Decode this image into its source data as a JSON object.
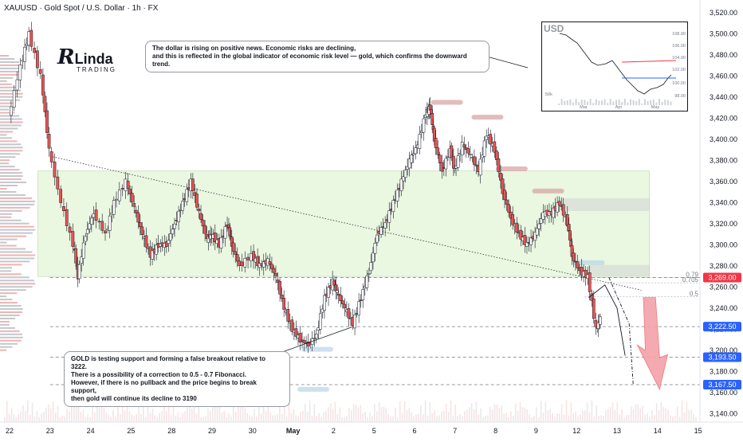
{
  "header": {
    "title": "XAUUSD · Gold Spot / U.S. Dollar · 1h · FX"
  },
  "logo": {
    "initial": "R",
    "name": "Linda",
    "subtitle": "TRADING"
  },
  "notes": [
    {
      "text_lines": [
        "The dollar is rising on positive news. Economic risks are declining,",
        "and this is reflected in the global indicator of economic risk level — gold, which confirms the downward trend."
      ]
    },
    {
      "text_lines": [
        "GOLD is testing support and forming a false breakout relative to 3222.",
        "There is a possibility of a correction to 0.5 - 0.7 Fibonacci.",
        "However, if there is no pullback and the price begins to break support,",
        "then gold will continue its decline to 3190"
      ]
    }
  ],
  "chart_data": {
    "type": "line",
    "title": "XAUUSD · Gold Spot / U.S. Dollar · 1h · FX",
    "x_tick_labels": [
      "22",
      "23",
      "24",
      "25",
      "28",
      "29",
      "30",
      "May",
      "2",
      "5",
      "6",
      "7",
      "8",
      "9",
      "12",
      "13",
      "14",
      "15"
    ],
    "y_ticks": [
      3140,
      3160,
      3180,
      3200,
      3220,
      3240,
      3260,
      3280,
      3300,
      3320,
      3340,
      3360,
      3380,
      3400,
      3420,
      3440,
      3460,
      3480,
      3500,
      3520
    ],
    "ylim": [
      3132,
      3532
    ],
    "grid": false,
    "price_path": [
      [
        0,
        3420
      ],
      [
        0.3,
        3470
      ],
      [
        0.5,
        3500
      ],
      [
        0.8,
        3460
      ],
      [
        1.0,
        3390
      ],
      [
        1.3,
        3340
      ],
      [
        1.6,
        3300
      ],
      [
        1.7,
        3270
      ],
      [
        1.9,
        3310
      ],
      [
        2.1,
        3330
      ],
      [
        2.4,
        3310
      ],
      [
        2.6,
        3340
      ],
      [
        2.9,
        3360
      ],
      [
        3.1,
        3335
      ],
      [
        3.3,
        3310
      ],
      [
        3.5,
        3290
      ],
      [
        3.7,
        3300
      ],
      [
        3.9,
        3300
      ],
      [
        4.1,
        3320
      ],
      [
        4.3,
        3340
      ],
      [
        4.5,
        3360
      ],
      [
        4.7,
        3330
      ],
      [
        4.9,
        3305
      ],
      [
        5.0,
        3310
      ],
      [
        5.2,
        3300
      ],
      [
        5.4,
        3320
      ],
      [
        5.5,
        3300
      ],
      [
        5.7,
        3280
      ],
      [
        6.0,
        3290
      ],
      [
        6.2,
        3280
      ],
      [
        6.4,
        3285
      ],
      [
        6.6,
        3270
      ],
      [
        6.8,
        3240
      ],
      [
        7.0,
        3220
      ],
      [
        7.2,
        3210
      ],
      [
        7.4,
        3205
      ],
      [
        7.6,
        3215
      ],
      [
        7.8,
        3250
      ],
      [
        8.0,
        3265
      ],
      [
        8.1,
        3255
      ],
      [
        8.3,
        3240
      ],
      [
        8.5,
        3225
      ],
      [
        8.7,
        3250
      ],
      [
        8.9,
        3275
      ],
      [
        9.1,
        3310
      ],
      [
        9.3,
        3320
      ],
      [
        9.5,
        3340
      ],
      [
        9.7,
        3360
      ],
      [
        9.9,
        3380
      ],
      [
        10.1,
        3395
      ],
      [
        10.3,
        3425
      ],
      [
        10.4,
        3430
      ],
      [
        10.5,
        3400
      ],
      [
        10.7,
        3370
      ],
      [
        10.9,
        3390
      ],
      [
        11.0,
        3370
      ],
      [
        11.2,
        3395
      ],
      [
        11.4,
        3385
      ],
      [
        11.6,
        3370
      ],
      [
        11.8,
        3405
      ],
      [
        12.0,
        3390
      ],
      [
        12.2,
        3350
      ],
      [
        12.4,
        3325
      ],
      [
        12.6,
        3310
      ],
      [
        12.8,
        3300
      ],
      [
        13.0,
        3310
      ],
      [
        13.2,
        3330
      ],
      [
        13.4,
        3330
      ],
      [
        13.6,
        3340
      ],
      [
        13.8,
        3320
      ],
      [
        13.9,
        3290
      ],
      [
        14.1,
        3275
      ],
      [
        14.3,
        3270
      ],
      [
        14.5,
        3220
      ],
      [
        14.6,
        3230
      ]
    ],
    "volume_profile": "left",
    "levels": [
      {
        "price": 3269.0,
        "label": "3,269.00",
        "color": "#f23645"
      },
      {
        "price": 3222.5,
        "label": "3,222.50",
        "color": "#2962ff"
      },
      {
        "price": 3193.5,
        "label": "3,193.50",
        "color": "#2962ff"
      },
      {
        "price": 3167.5,
        "label": "3,167.50",
        "color": "#2962ff"
      }
    ],
    "fibonacci": [
      {
        "ratio": "0.79",
        "price": 3269
      },
      {
        "ratio": "0.705",
        "price": 3264
      },
      {
        "ratio": "0.5",
        "price": 3251
      }
    ],
    "range_box": {
      "top": 3370,
      "bottom": 3270
    },
    "colors": {
      "up": "#26a69a",
      "down": "#ef5350",
      "candle": "#131722",
      "range_fill": "#d8f0c8",
      "arrow": "#f4a0a8"
    }
  },
  "inset_chart": {
    "title": "USD",
    "y_tick_labels": [
      "108.00",
      "106.00",
      "104.00",
      "102.00",
      "100.00",
      "98.00"
    ],
    "x_tick_labels": [
      "Mar",
      "Apr",
      "May"
    ],
    "volume_label": "50k"
  }
}
